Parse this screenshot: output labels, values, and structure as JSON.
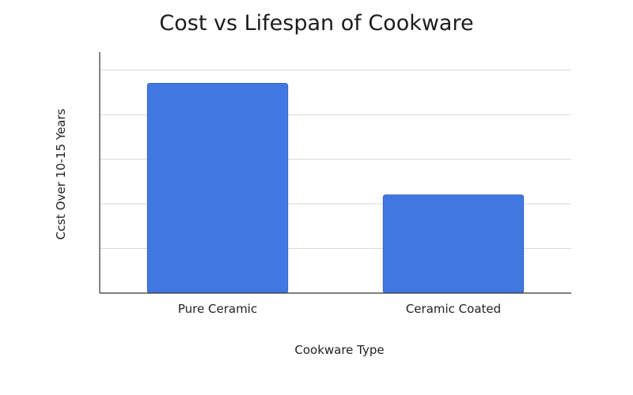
{
  "chart_data": {
    "type": "bar",
    "title": "Cost vs Lifespan of Cookware",
    "xlabel": "Cookware Type",
    "ylabel": "Ccst Over 10-15 Years",
    "categories": [
      "Pure Ceramic",
      "Ceramic Coated"
    ],
    "values": [
      4.7,
      2.2
    ],
    "ylim": [
      0,
      5.4
    ],
    "grid": true,
    "colors": {
      "bar": "#4177e0",
      "bar_edge": "#3565c4",
      "grid": "#d9d9d9",
      "axis": "#333333"
    }
  }
}
